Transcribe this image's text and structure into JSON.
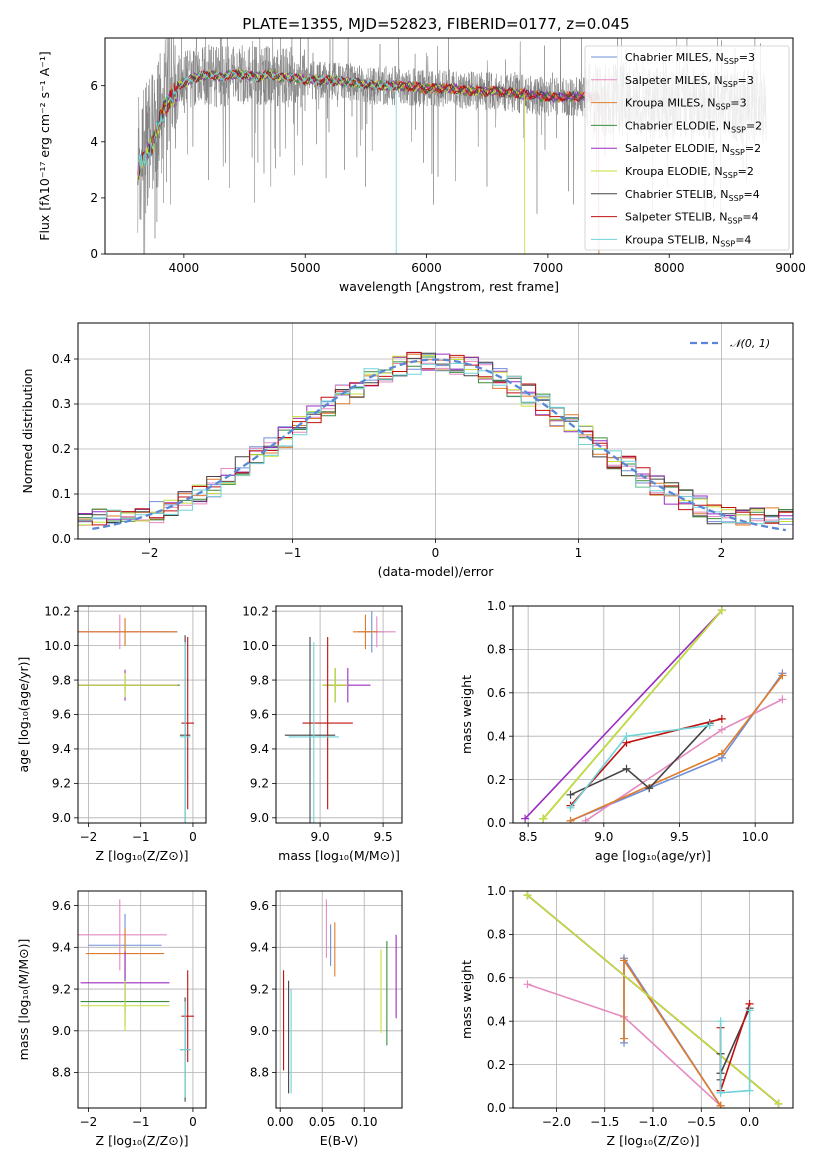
{
  "title": "PLATE=1355, MJD=52823, FIBERID=0177, z=0.045",
  "colors": {
    "chabrier_miles": "#6f8fd8",
    "salpeter_miles": "#e58ac0",
    "kroupa_miles": "#e07b2a",
    "chabrier_elodie": "#3c8c3c",
    "salpeter_elodie": "#9b2cc0",
    "kroupa_elodie": "#c6df3a",
    "chabrier_stelib": "#444444",
    "salpeter_stelib": "#c01010",
    "kroupa_stelib": "#6fd3d8",
    "gaussian": "#5b88d6",
    "data_spectrum": "#808080"
  },
  "chart_data": [
    {
      "id": "spectrum",
      "type": "line",
      "xlabel": "wavelength [Angstrom, rest frame]",
      "ylabel": "Flux [fλ10⁻¹⁷ erg cm⁻² s⁻¹ A⁻¹]",
      "xlim": [
        3350,
        9020
      ],
      "ylim": [
        0,
        7.7
      ],
      "xticks": [
        4000,
        5000,
        6000,
        7000,
        8000,
        9000
      ],
      "yticks": [
        0,
        2,
        4,
        6
      ],
      "legend": "top-right",
      "legend_entries": [
        {
          "key": "chabrier_miles",
          "label": "Chabrier MILES, N",
          "sub": "SSP",
          "suffix": "=3"
        },
        {
          "key": "salpeter_miles",
          "label": "Salpeter MILES, N",
          "sub": "SSP",
          "suffix": "=3"
        },
        {
          "key": "kroupa_miles",
          "label": "Kroupa MILES, N",
          "sub": "SSP",
          "suffix": "=3"
        },
        {
          "key": "chabrier_elodie",
          "label": "Chabrier ELODIE, N",
          "sub": "SSP",
          "suffix": "=2"
        },
        {
          "key": "salpeter_elodie",
          "label": "Salpeter ELODIE, N",
          "sub": "SSP",
          "suffix": "=2"
        },
        {
          "key": "kroupa_elodie",
          "label": "Kroupa ELODIE, N",
          "sub": "SSP",
          "suffix": "=2"
        },
        {
          "key": "chabrier_stelib",
          "label": "Chabrier STELIB, N",
          "sub": "SSP",
          "suffix": "=4"
        },
        {
          "key": "salpeter_stelib",
          "label": "Salpeter STELIB, N",
          "sub": "SSP",
          "suffix": "=4"
        },
        {
          "key": "kroupa_stelib",
          "label": "Kroupa STELIB, N",
          "sub": "SSP",
          "suffix": "=4"
        }
      ],
      "model_trace": {
        "x": [
          3620,
          3650,
          3700,
          3750,
          3800,
          3850,
          3900,
          3950,
          4000,
          4100,
          4200,
          4300,
          4400,
          4500,
          4600,
          4700,
          4800,
          4900,
          5000,
          5200,
          5400,
          5600,
          5800,
          6000,
          6200,
          6400,
          6600,
          6800,
          7000,
          7200,
          7400
        ],
        "y": [
          3.2,
          3.6,
          3.9,
          4.3,
          5.0,
          5.6,
          5.9,
          6.0,
          6.1,
          6.3,
          6.4,
          6.3,
          6.4,
          6.4,
          6.3,
          6.4,
          6.3,
          6.3,
          6.2,
          6.2,
          6.1,
          6.0,
          6.0,
          5.9,
          5.9,
          5.8,
          5.8,
          5.7,
          5.6,
          5.6,
          5.6
        ]
      }
    },
    {
      "id": "residuals",
      "type": "step",
      "xlabel": "(data-model)/error",
      "ylabel": "Normed distribution",
      "xlim": [
        -2.5,
        2.5
      ],
      "ylim": [
        0,
        0.48
      ],
      "xticks": [
        -2,
        -1,
        0,
        1,
        2
      ],
      "yticks": [
        0.0,
        0.1,
        0.2,
        0.3,
        0.4
      ],
      "legend": "top-right",
      "legend_label": "𝒩(0, 1)"
    },
    {
      "id": "age_vs_Z",
      "type": "errorbar",
      "xlabel": "Z [log₁₀(Z/Z⊙)]",
      "ylabel": "age  [log₁₀(age/yr)]",
      "xlim": [
        -2.2,
        0.25
      ],
      "ylim": [
        8.97,
        10.23
      ],
      "xticks": [
        -2,
        -1,
        0
      ],
      "yticks": [
        9.0,
        9.2,
        9.4,
        9.6,
        9.8,
        10.0,
        10.2
      ],
      "points": [
        {
          "key": "chabrier_miles",
          "x": -1.3,
          "y": 10.08,
          "xerr": 1.0,
          "yerr": 0.07
        },
        {
          "key": "salpeter_miles",
          "x": -1.4,
          "y": 10.08,
          "xerr": 0.95,
          "yerr": 0.1
        },
        {
          "key": "kroupa_miles",
          "x": -1.3,
          "y": 10.08,
          "xerr": 1.0,
          "yerr": 0.08
        },
        {
          "key": "chabrier_elodie",
          "x": -1.3,
          "y": 9.77,
          "xerr": 1.05,
          "yerr": 0.05
        },
        {
          "key": "salpeter_elodie",
          "x": -1.3,
          "y": 9.77,
          "xerr": 1.0,
          "yerr": 0.09
        },
        {
          "key": "kroupa_elodie",
          "x": -1.3,
          "y": 9.77,
          "xerr": 1.0,
          "yerr": 0.07
        },
        {
          "key": "chabrier_stelib",
          "x": -0.15,
          "y": 9.48,
          "xerr": 0.1,
          "yerr": 0.58
        },
        {
          "key": "salpeter_stelib",
          "x": -0.1,
          "y": 9.55,
          "xerr": 0.12,
          "yerr": 0.5
        },
        {
          "key": "kroupa_stelib",
          "x": -0.15,
          "y": 9.47,
          "xerr": 0.1,
          "yerr": 0.55
        }
      ]
    },
    {
      "id": "age_vs_mass",
      "type": "errorbar",
      "xlabel": "mass [log₁₀(M/M⊙)]",
      "ylabel": "",
      "xlim": [
        8.65,
        9.65
      ],
      "ylim": [
        8.97,
        10.23
      ],
      "xticks": [
        9.0,
        9.5
      ],
      "yticks": [
        9.0,
        9.2,
        9.4,
        9.6,
        9.8,
        10.0,
        10.2
      ],
      "points": [
        {
          "key": "chabrier_miles",
          "x": 9.41,
          "y": 10.08,
          "xerr": 0.1,
          "yerr": 0.12
        },
        {
          "key": "salpeter_miles",
          "x": 9.45,
          "y": 10.08,
          "xerr": 0.15,
          "yerr": 0.09
        },
        {
          "key": "kroupa_miles",
          "x": 9.36,
          "y": 10.08,
          "xerr": 0.1,
          "yerr": 0.1
        },
        {
          "key": "chabrier_elodie",
          "x": 9.12,
          "y": 9.77,
          "xerr": 0.1,
          "yerr": 0.1
        },
        {
          "key": "salpeter_elodie",
          "x": 9.22,
          "y": 9.77,
          "xerr": 0.18,
          "yerr": 0.1
        },
        {
          "key": "kroupa_elodie",
          "x": 9.12,
          "y": 9.77,
          "xerr": 0.1,
          "yerr": 0.1
        },
        {
          "key": "chabrier_stelib",
          "x": 8.92,
          "y": 9.48,
          "xerr": 0.2,
          "yerr": 0.57
        },
        {
          "key": "salpeter_stelib",
          "x": 9.06,
          "y": 9.55,
          "xerr": 0.2,
          "yerr": 0.5
        },
        {
          "key": "kroupa_stelib",
          "x": 8.95,
          "y": 9.47,
          "xerr": 0.2,
          "yerr": 0.55
        }
      ]
    },
    {
      "id": "massweight_vs_age",
      "type": "line",
      "xlabel": "age  [log₁₀(age/yr)]",
      "ylabel": "mass weight",
      "xlim": [
        8.4,
        10.25
      ],
      "ylim": [
        0,
        1.0
      ],
      "xticks": [
        8.5,
        9.0,
        9.5,
        10.0
      ],
      "yticks": [
        0.0,
        0.2,
        0.4,
        0.6,
        0.8,
        1.0
      ],
      "series": [
        {
          "key": "chabrier_miles",
          "x": [
            8.78,
            9.78,
            10.18
          ],
          "y": [
            0.01,
            0.3,
            0.69
          ]
        },
        {
          "key": "salpeter_miles",
          "x": [
            8.88,
            9.78,
            10.18
          ],
          "y": [
            0.01,
            0.43,
            0.57
          ]
        },
        {
          "key": "kroupa_miles",
          "x": [
            8.78,
            9.78,
            10.18
          ],
          "y": [
            0.01,
            0.32,
            0.68
          ]
        },
        {
          "key": "chabrier_elodie",
          "x": [
            8.6,
            9.78
          ],
          "y": [
            0.02,
            0.98
          ]
        },
        {
          "key": "salpeter_elodie",
          "x": [
            8.48,
            9.78
          ],
          "y": [
            0.02,
            0.98
          ]
        },
        {
          "key": "kroupa_elodie",
          "x": [
            8.6,
            9.78
          ],
          "y": [
            0.02,
            0.98
          ]
        },
        {
          "key": "chabrier_stelib",
          "x": [
            8.78,
            9.15,
            9.3,
            9.7
          ],
          "y": [
            0.13,
            0.25,
            0.16,
            0.46
          ]
        },
        {
          "key": "salpeter_stelib",
          "x": [
            8.78,
            9.15,
            9.78
          ],
          "y": [
            0.08,
            0.37,
            0.48
          ]
        },
        {
          "key": "kroupa_stelib",
          "x": [
            8.78,
            9.15,
            9.7
          ],
          "y": [
            0.07,
            0.4,
            0.45
          ]
        }
      ]
    },
    {
      "id": "mass_vs_Z",
      "type": "errorbar",
      "xlabel": "Z [log₁₀(Z/Z⊙)]",
      "ylabel": "mass [log₁₀(M/M⊙)]",
      "xlim": [
        -2.2,
        0.25
      ],
      "ylim": [
        8.63,
        9.67
      ],
      "xticks": [
        -2,
        -1,
        0
      ],
      "yticks": [
        8.8,
        9.0,
        9.2,
        9.4,
        9.6
      ],
      "points": [
        {
          "key": "chabrier_miles",
          "x": -1.3,
          "y": 9.41,
          "xerr": 0.7,
          "yerr": 0.15
        },
        {
          "key": "salpeter_miles",
          "x": -1.4,
          "y": 9.46,
          "xerr": 0.9,
          "yerr": 0.17
        },
        {
          "key": "kroupa_miles",
          "x": -1.3,
          "y": 9.37,
          "xerr": 0.75,
          "yerr": 0.12
        },
        {
          "key": "chabrier_elodie",
          "x": -1.3,
          "y": 9.14,
          "xerr": 0.85,
          "yerr": 0.12
        },
        {
          "key": "salpeter_elodie",
          "x": -1.3,
          "y": 9.23,
          "xerr": 0.85,
          "yerr": 0.15
        },
        {
          "key": "kroupa_elodie",
          "x": -1.3,
          "y": 9.12,
          "xerr": 0.85,
          "yerr": 0.12
        },
        {
          "key": "chabrier_stelib",
          "x": -0.15,
          "y": 8.91,
          "xerr": 0.1,
          "yerr": 0.25
        },
        {
          "key": "salpeter_stelib",
          "x": -0.1,
          "y": 9.07,
          "xerr": 0.12,
          "yerr": 0.22
        },
        {
          "key": "kroupa_stelib",
          "x": -0.15,
          "y": 8.91,
          "xerr": 0.1,
          "yerr": 0.23
        }
      ]
    },
    {
      "id": "mass_vs_ebv",
      "type": "errorbar",
      "xlabel": "E(B-V)",
      "ylabel": "",
      "xlim": [
        -0.005,
        0.145
      ],
      "ylim": [
        8.63,
        9.67
      ],
      "xticks": [
        0.0,
        0.05,
        0.1
      ],
      "yticks": [
        8.8,
        9.0,
        9.2,
        9.4,
        9.6
      ],
      "points": [
        {
          "key": "chabrier_miles",
          "x": 0.06,
          "y": 9.41,
          "xerr": 0,
          "yerr": 0.1
        },
        {
          "key": "salpeter_miles",
          "x": 0.055,
          "y": 9.49,
          "xerr": 0,
          "yerr": 0.14
        },
        {
          "key": "kroupa_miles",
          "x": 0.065,
          "y": 9.39,
          "xerr": 0,
          "yerr": 0.13
        },
        {
          "key": "chabrier_elodie",
          "x": 0.127,
          "y": 9.18,
          "xerr": 0,
          "yerr": 0.25
        },
        {
          "key": "salpeter_elodie",
          "x": 0.138,
          "y": 9.26,
          "xerr": 0,
          "yerr": 0.2
        },
        {
          "key": "kroupa_elodie",
          "x": 0.12,
          "y": 9.19,
          "xerr": 0,
          "yerr": 0.2
        },
        {
          "key": "chabrier_stelib",
          "x": 0.01,
          "y": 8.97,
          "xerr": 0,
          "yerr": 0.27
        },
        {
          "key": "salpeter_stelib",
          "x": 0.004,
          "y": 9.05,
          "xerr": 0,
          "yerr": 0.24
        },
        {
          "key": "kroupa_stelib",
          "x": 0.013,
          "y": 8.95,
          "xerr": 0,
          "yerr": 0.25
        }
      ]
    },
    {
      "id": "massweight_vs_Z",
      "type": "line",
      "xlabel": "Z [log₁₀(Z/Z⊙)]",
      "ylabel": "mass weight",
      "xlim": [
        -2.45,
        0.45
      ],
      "ylim": [
        0,
        1.0
      ],
      "xticks": [
        -2.0,
        -1.5,
        -1.0,
        -0.5,
        0.0
      ],
      "yticks": [
        0.0,
        0.2,
        0.4,
        0.6,
        0.8,
        1.0
      ],
      "series": [
        {
          "key": "chabrier_miles",
          "x": [
            -1.3,
            -1.3,
            -0.3,
            -0.3
          ],
          "y": [
            0.3,
            0.69,
            0.01,
            0.01
          ]
        },
        {
          "key": "salpeter_miles",
          "x": [
            -2.3,
            -1.3,
            -0.3
          ],
          "y": [
            0.57,
            0.42,
            0.01
          ]
        },
        {
          "key": "kroupa_miles",
          "x": [
            -1.3,
            -1.3,
            -0.3,
            -0.3
          ],
          "y": [
            0.32,
            0.68,
            0.01,
            0.01
          ]
        },
        {
          "key": "chabrier_elodie",
          "x": [
            -2.3,
            0.3
          ],
          "y": [
            0.98,
            0.02
          ]
        },
        {
          "key": "salpeter_elodie",
          "x": [
            -2.3,
            0.3
          ],
          "y": [
            0.98,
            0.02
          ]
        },
        {
          "key": "kroupa_elodie",
          "x": [
            -2.3,
            0.3
          ],
          "y": [
            0.98,
            0.02
          ]
        },
        {
          "key": "chabrier_stelib",
          "x": [
            -0.3,
            -0.3,
            -0.3,
            0.0
          ],
          "y": [
            0.25,
            0.13,
            0.16,
            0.46
          ]
        },
        {
          "key": "salpeter_stelib",
          "x": [
            -0.3,
            -0.3,
            0.0
          ],
          "y": [
            0.37,
            0.08,
            0.48
          ]
        },
        {
          "key": "kroupa_stelib",
          "x": [
            -0.3,
            -0.3,
            -0.3,
            0.0,
            0.0
          ],
          "y": [
            0.4,
            0.07,
            0.07,
            0.08,
            0.45
          ]
        }
      ]
    }
  ]
}
